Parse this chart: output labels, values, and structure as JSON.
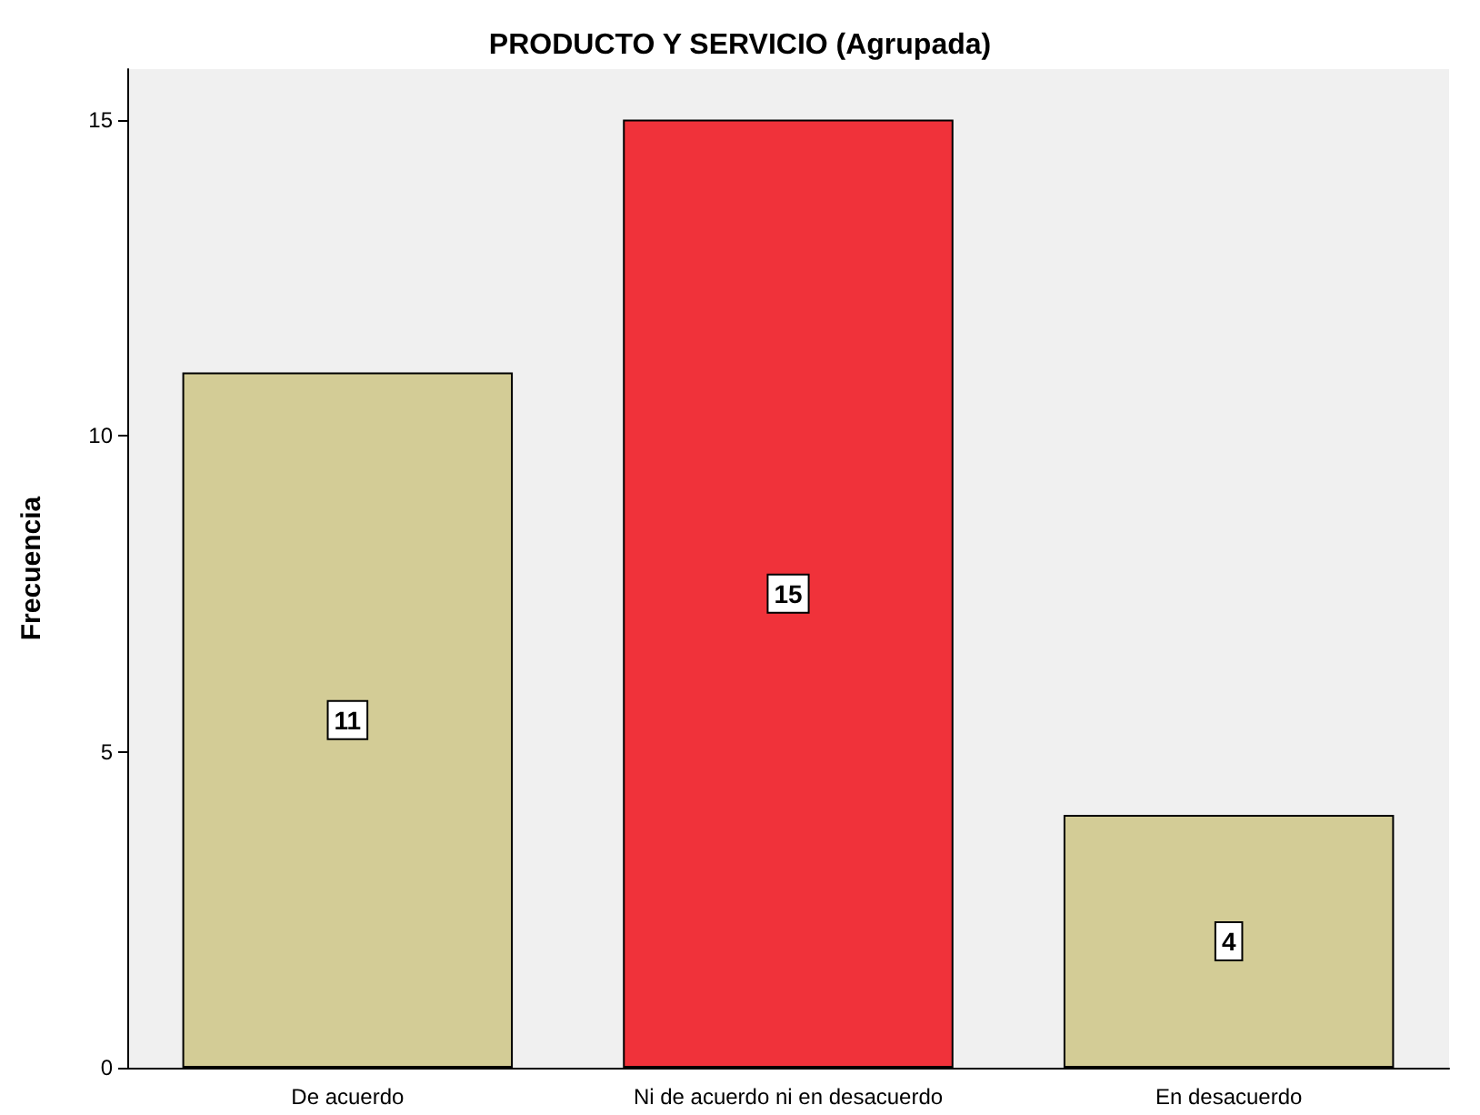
{
  "chart_data": {
    "type": "bar",
    "title": "PRODUCTO Y SERVICIO (Agrupada)",
    "ylabel": "Frecuencia",
    "categories": [
      "De acuerdo",
      "Ni de acuerdo ni en desacuerdo",
      "En desacuerdo"
    ],
    "values": [
      11,
      15,
      4
    ],
    "colors": [
      "#d3cc96",
      "#f0323a",
      "#d3cc96"
    ],
    "ylim": [
      0,
      15.8
    ],
    "yticks": [
      0,
      5,
      10,
      15
    ],
    "grid": false,
    "data_labels": true
  }
}
